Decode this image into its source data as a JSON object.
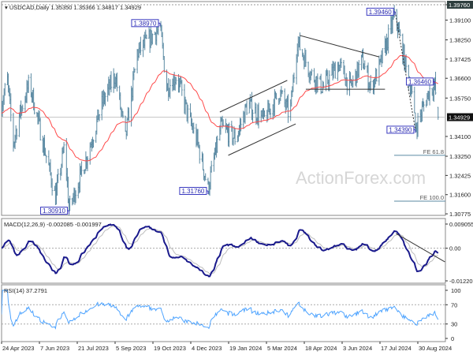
{
  "header": {
    "symbol_line": "USDCAD,Daily  1.35350 1.35366 1.34817 1.34929"
  },
  "watermark": "ActionForex.com",
  "colors": {
    "bars": "#5b8aa3",
    "moving_average": "#ff4a4a",
    "macd": "#1a1a8c",
    "macd_signal": "#bdbdbd",
    "rsi": "#4da3ff",
    "label_border": "#3a3ac0",
    "current_price_bg": "#111111"
  },
  "price_axis": {
    "labels": [
      "1.39760",
      "1.39100",
      "1.38250",
      "1.37425",
      "1.36600",
      "1.35750",
      "1.34100",
      "1.33250",
      "1.32425",
      "1.31600",
      "1.30775"
    ],
    "current_price": "1.34929"
  },
  "date_axis": {
    "labels": [
      "24 Apr 2023",
      "7 Jun 2023",
      "21 Jul 2023",
      "5 Sep 2023",
      "19 Oct 2023",
      "4 Dec 2023",
      "19 Jan 2024",
      "5 Mar 2024",
      "18 Apr 2024",
      "3 Jun 2024",
      "17 Jul 2024",
      "30 Aug 2024"
    ]
  },
  "price_labels": [
    {
      "text": "1.38970",
      "date": "2023-10-29",
      "price": 1.3897
    },
    {
      "text": "1.30910",
      "date": "2023-07-13",
      "price": 1.3091
    },
    {
      "text": "1.31760",
      "date": "2023-12-25",
      "price": 1.3176
    },
    {
      "text": "1.39460",
      "date": "2024-08-03",
      "price": 1.3946
    },
    {
      "text": "1.36460",
      "date": "2024-09-19",
      "price": 1.3646
    },
    {
      "text": "1.34390",
      "date": "2024-08-27",
      "price": 1.3439
    }
  ],
  "fibonacci": [
    {
      "label": "FE 61.8",
      "price": 1.3329
    },
    {
      "label": "FE 100.0",
      "price": 1.3132
    }
  ],
  "macd": {
    "label": "MACD(12,26,9) -0.002085 -0.001997",
    "axis_labels": [
      "0.009055",
      "0.00",
      "-0.012209"
    ],
    "max": 0.009055,
    "min": -0.012209
  },
  "rsi": {
    "label": "RSI(14) 37.2791",
    "axis_labels": [
      "100",
      "70",
      "30",
      "0"
    ],
    "levels": [
      70,
      30
    ]
  },
  "chart_data": {
    "type": "ohlc",
    "title": "USDCAD,Daily",
    "ylim": [
      1.30775,
      1.3976
    ],
    "last_bar": {
      "open": 1.3535,
      "high": 1.35366,
      "low": 1.34817,
      "close": 1.34929
    },
    "moving_average": "red line",
    "close_path": [
      [
        "2023-04-24",
        1.355
      ],
      [
        "2023-05-01",
        1.365
      ],
      [
        "2023-05-08",
        1.338
      ],
      [
        "2023-05-15",
        1.35
      ],
      [
        "2023-05-27",
        1.364
      ],
      [
        "2023-06-08",
        1.345
      ],
      [
        "2023-06-27",
        1.315
      ],
      [
        "2023-07-08",
        1.3376
      ],
      [
        "2023-07-13",
        1.3095
      ],
      [
        "2023-08-03",
        1.332
      ],
      [
        "2023-08-22",
        1.356
      ],
      [
        "2023-09-06",
        1.367
      ],
      [
        "2023-09-18",
        1.34
      ],
      [
        "2023-10-02",
        1.377
      ],
      [
        "2023-10-29",
        1.388
      ],
      [
        "2023-11-06",
        1.362
      ],
      [
        "2023-11-18",
        1.367
      ],
      [
        "2023-12-02",
        1.349
      ],
      [
        "2023-12-12",
        1.339
      ],
      [
        "2023-12-25",
        1.3185
      ],
      [
        "2024-01-09",
        1.345
      ],
      [
        "2024-01-27",
        1.34
      ],
      [
        "2024-02-10",
        1.355
      ],
      [
        "2024-02-29",
        1.348
      ],
      [
        "2024-03-19",
        1.36
      ],
      [
        "2024-03-31",
        1.35
      ],
      [
        "2024-04-09",
        1.382
      ],
      [
        "2024-04-25",
        1.368
      ],
      [
        "2024-05-09",
        1.362
      ],
      [
        "2024-05-28",
        1.372
      ],
      [
        "2024-06-11",
        1.362
      ],
      [
        "2024-06-25",
        1.374
      ],
      [
        "2024-07-05",
        1.362
      ],
      [
        "2024-07-14",
        1.369
      ],
      [
        "2024-08-03",
        1.3935
      ],
      [
        "2024-08-16",
        1.37
      ],
      [
        "2024-08-22",
        1.362
      ],
      [
        "2024-08-27",
        1.3445
      ],
      [
        "2024-09-13",
        1.361
      ],
      [
        "2024-09-19",
        1.363
      ],
      [
        "2024-09-23",
        1.3493
      ]
    ],
    "trendlines": [
      {
        "from": [
          "2024-04-12",
          1.3844
        ],
        "to": [
          "2024-07-15",
          1.3752
        ],
        "style": "solid"
      },
      {
        "from": [
          "2024-04-19",
          1.3613
        ],
        "to": [
          "2024-07-22",
          1.3613
        ],
        "style": "solid"
      },
      {
        "from": [
          "2024-01-08",
          1.3515
        ],
        "to": [
          "2024-03-28",
          1.3651
        ],
        "style": "solid"
      },
      {
        "from": [
          "2024-01-18",
          1.3329
        ],
        "to": [
          "2024-04-07",
          1.3464
        ],
        "style": "solid"
      },
      {
        "from": [
          "2024-08-03",
          1.3946
        ],
        "to": [
          "2024-08-27",
          1.3439
        ],
        "style": "dotted"
      }
    ],
    "macd_trendline": {
      "from": [
        "2024-08-04",
        0.0055
      ],
      "to": [
        "2024-10-01",
        -0.0051
      ]
    }
  }
}
